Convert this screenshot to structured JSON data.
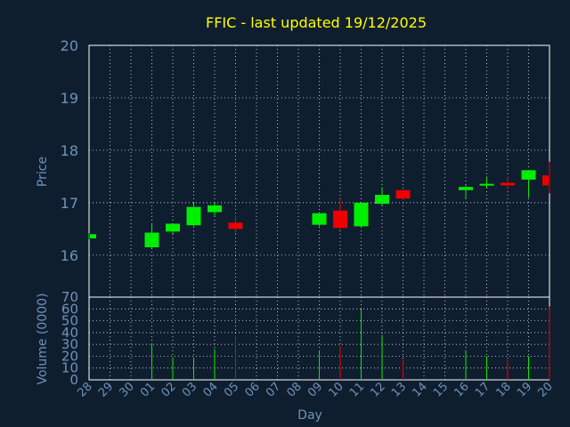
{
  "title": "FFIC - last updated 19/12/2025",
  "colors": {
    "background": "#0f1e2f",
    "axis_text": "#6f92b8",
    "title": "#ffff00",
    "up": "#00ee00",
    "down": "#ee0000",
    "grid": "#ffffff"
  },
  "chart_data": [
    {
      "type": "candlestick",
      "ylabel": "Price",
      "ylim": [
        15.2,
        20
      ],
      "yticks": [
        16,
        17,
        18,
        19,
        20
      ],
      "grid": true,
      "candles": [
        {
          "x": 0,
          "open": 16.32,
          "close": 16.4,
          "high": 16.42,
          "low": 16.3
        },
        {
          "x": 3,
          "open": 16.15,
          "close": 16.43,
          "high": 16.6,
          "low": 16.13
        },
        {
          "x": 4,
          "open": 16.45,
          "close": 16.6,
          "high": 16.6,
          "low": 16.4
        },
        {
          "x": 5,
          "open": 16.57,
          "close": 16.92,
          "high": 17.0,
          "low": 16.55
        },
        {
          "x": 6,
          "open": 16.82,
          "close": 16.95,
          "high": 17.0,
          "low": 16.75
        },
        {
          "x": 7,
          "open": 16.62,
          "close": 16.5,
          "high": 16.75,
          "low": 16.4
        },
        {
          "x": 11,
          "open": 16.58,
          "close": 16.8,
          "high": 16.82,
          "low": 16.55
        },
        {
          "x": 12,
          "open": 16.85,
          "close": 16.52,
          "high": 17.05,
          "low": 16.48
        },
        {
          "x": 13,
          "open": 16.55,
          "close": 17.0,
          "high": 17.0,
          "low": 16.52
        },
        {
          "x": 14,
          "open": 16.98,
          "close": 17.15,
          "high": 17.3,
          "low": 16.95
        },
        {
          "x": 15,
          "open": 17.24,
          "close": 17.08,
          "high": 17.24,
          "low": 17.05
        },
        {
          "x": 18,
          "open": 17.24,
          "close": 17.3,
          "high": 17.33,
          "low": 17.08
        },
        {
          "x": 19,
          "open": 17.33,
          "close": 17.36,
          "high": 17.5,
          "low": 17.28
        },
        {
          "x": 20,
          "open": 17.38,
          "close": 17.33,
          "high": 17.5,
          "low": 17.25
        },
        {
          "x": 21,
          "open": 17.44,
          "close": 17.62,
          "high": 17.62,
          "low": 17.1
        },
        {
          "x": 22,
          "open": 17.52,
          "close": 17.33,
          "high": 17.78,
          "low": 17.18
        }
      ]
    },
    {
      "type": "bar",
      "ylabel": "Volume (0000)",
      "ylim": [
        0,
        70
      ],
      "yticks": [
        0,
        10,
        20,
        30,
        40,
        50,
        60,
        70
      ],
      "grid": true,
      "bars": [
        {
          "x": 3,
          "value": 31,
          "dir": "up"
        },
        {
          "x": 4,
          "value": 19,
          "dir": "up"
        },
        {
          "x": 5,
          "value": 19,
          "dir": "up"
        },
        {
          "x": 6,
          "value": 26,
          "dir": "up"
        },
        {
          "x": 7,
          "value": 37,
          "dir": "down"
        },
        {
          "x": 11,
          "value": 25,
          "dir": "up"
        },
        {
          "x": 12,
          "value": 29,
          "dir": "down"
        },
        {
          "x": 13,
          "value": 61,
          "dir": "up"
        },
        {
          "x": 14,
          "value": 38,
          "dir": "up"
        },
        {
          "x": 15,
          "value": 17,
          "dir": "down"
        },
        {
          "x": 18,
          "value": 25,
          "dir": "up"
        },
        {
          "x": 19,
          "value": 20,
          "dir": "up"
        },
        {
          "x": 20,
          "value": 17,
          "dir": "down"
        },
        {
          "x": 21,
          "value": 20,
          "dir": "up"
        },
        {
          "x": 22,
          "value": 62,
          "dir": "down"
        }
      ]
    }
  ],
  "xaxis": {
    "label": "Day",
    "ticks": [
      "28",
      "29",
      "30",
      "01",
      "02",
      "03",
      "04",
      "05",
      "06",
      "07",
      "08",
      "09",
      "10",
      "11",
      "12",
      "13",
      "14",
      "15",
      "16",
      "17",
      "18",
      "19",
      "20"
    ]
  }
}
